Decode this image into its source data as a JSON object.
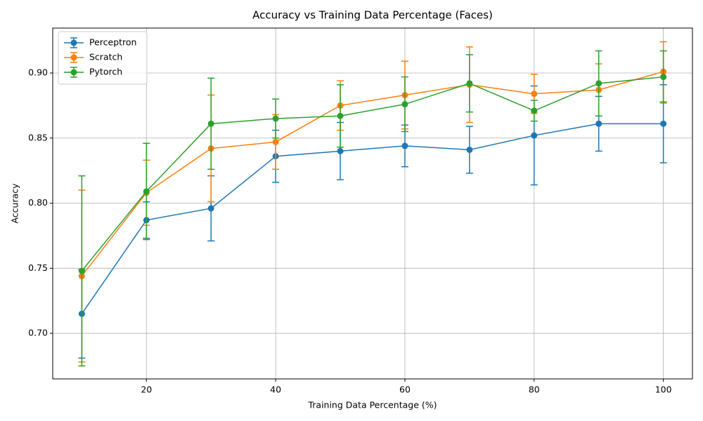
{
  "chart_data": {
    "type": "errorbar-line",
    "title": "Accuracy vs Training Data Percentage (Faces)",
    "x_label": "Training Data Percentage (%)",
    "y_label": "Accuracy",
    "x": [
      10,
      20,
      30,
      40,
      50,
      60,
      70,
      80,
      90,
      100
    ],
    "series": [
      {
        "name": "Perceptron",
        "color": "#1f77b4",
        "values": [
          0.715,
          0.787,
          0.796,
          0.836,
          0.84,
          0.844,
          0.841,
          0.852,
          0.861,
          0.861
        ],
        "errors": [
          0.034,
          0.014,
          0.025,
          0.02,
          0.022,
          0.016,
          0.018,
          0.038,
          0.021,
          0.03
        ]
      },
      {
        "name": "Scratch",
        "color": "#ff7f0e",
        "values": [
          0.744,
          0.808,
          0.842,
          0.847,
          0.875,
          0.883,
          0.891,
          0.884,
          0.887,
          0.901
        ],
        "errors": [
          0.066,
          0.025,
          0.041,
          0.021,
          0.019,
          0.026,
          0.029,
          0.015,
          0.02,
          0.023
        ]
      },
      {
        "name": "Pytorch",
        "color": "#2ca02c",
        "values": [
          0.748,
          0.809,
          0.861,
          0.865,
          0.867,
          0.876,
          0.892,
          0.871,
          0.892,
          0.897
        ],
        "errors": [
          0.073,
          0.037,
          0.035,
          0.015,
          0.024,
          0.021,
          0.022,
          0.008,
          0.025,
          0.02
        ]
      }
    ],
    "xlim": [
      5.5,
      104.5
    ],
    "ylim": [
      0.665,
      0.9345
    ],
    "xticks": [
      20,
      40,
      60,
      80,
      100
    ],
    "yticks": [
      {
        "value": 0.7,
        "label": "0.70"
      },
      0.75,
      {
        "value": 0.8,
        "label": "0.80"
      },
      0.85,
      {
        "value": 0.9,
        "label": "0.90"
      }
    ],
    "grid": true,
    "legend": "upper-left"
  }
}
